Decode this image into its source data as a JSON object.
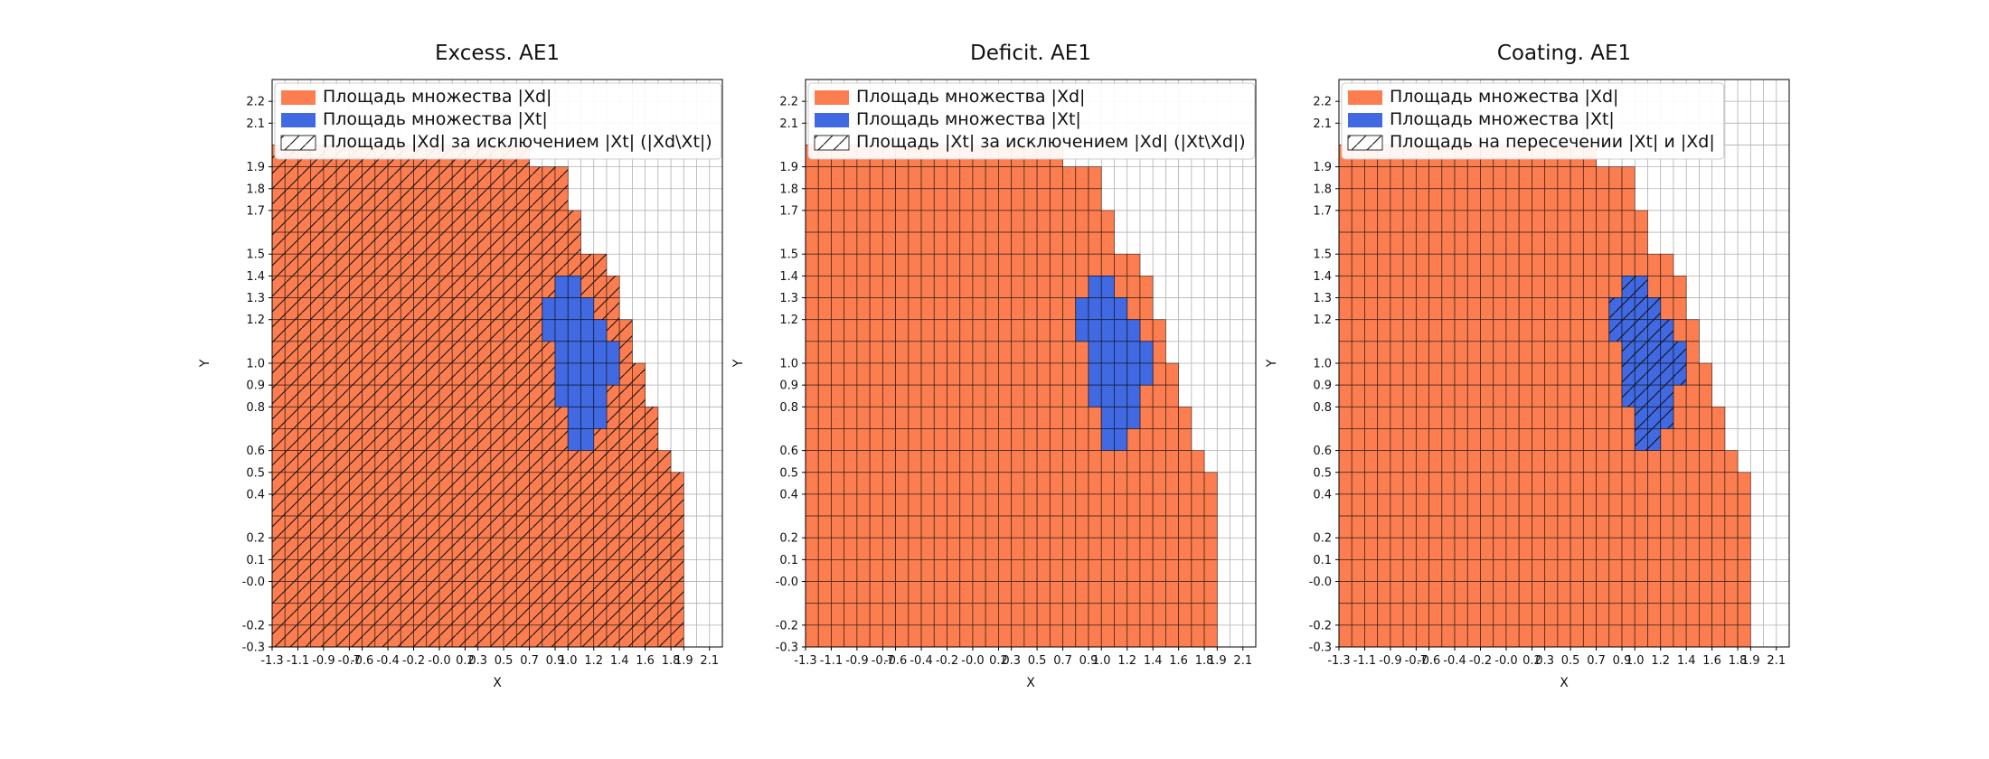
{
  "colors": {
    "xd": "#fc7e50",
    "xt": "#4169e1",
    "grid": "#b0b0b0",
    "cell_edge": "rgba(0,0,0,0.6)",
    "spine": "#000000",
    "legend_border": "#cccccc",
    "hatch": "#111111"
  },
  "panels": [
    {
      "title": "Excess. AE1",
      "xlabel": "X",
      "ylabel": "Y",
      "hatch": "xd",
      "legend": [
        "Площадь множества |Xd|",
        "Площадь множества  |Xt|",
        "Площадь |Xd| за исключением |Xt| (|Xd\\Xt|)"
      ]
    },
    {
      "title": "Deficit. AE1",
      "xlabel": "X",
      "ylabel": "Y",
      "hatch": "none",
      "legend": [
        "Площадь множества |Xd|",
        "Площадь множества  |Xt|",
        "Площадь |Xt| за исключением |Xd| (|Xt\\Xd|)"
      ]
    },
    {
      "title": "Coating. AE1",
      "xlabel": "X",
      "ylabel": "Y",
      "hatch": "xt",
      "legend": [
        "Площадь множества |Xd|",
        "Площадь множества  |Xt|",
        "Площадь на пересечении |Xt| и |Xd|"
      ]
    }
  ],
  "chart_data": {
    "type": "heatmap",
    "description": "Three grid-cell area plots comparing set |Xd| (orange cells) with set |Xt| (blue cells); hatching marks |Xd\\Xt| (Excess), |Xt\\Xd| (Deficit, empty) and the intersection (Coating). Cell size 0.1 x 0.1.",
    "cell_size": 0.1,
    "xlim": [
      -1.3,
      2.2
    ],
    "ylim": [
      -0.3,
      2.3
    ],
    "x_tick_labels": [
      "-1.3",
      "-1.1",
      "-0.9",
      "-0.7",
      "-0.6",
      "-0.4",
      "-0.2",
      "-0.0",
      "0.2",
      "0.3",
      "0.5",
      "0.7",
      "0.9",
      "1.0",
      "1.2",
      "1.4",
      "1.6",
      "1.8",
      "1.9",
      "2.1"
    ],
    "y_tick_labels": [
      "2.2",
      "2.1",
      "1.9",
      "1.8",
      "1.7",
      "1.5",
      "1.4",
      "1.3",
      "1.2",
      "1.0",
      "0.9",
      "0.8",
      "0.6",
      "0.5",
      "0.4",
      "0.2",
      "0.1",
      "-0.0",
      "-0.2",
      "-0.3"
    ],
    "xd_rows": [
      [
        1.9,
        -1.3,
        0.7
      ],
      [
        1.8,
        -1.3,
        1.0
      ],
      [
        1.7,
        -1.3,
        1.0
      ],
      [
        1.6,
        -1.3,
        1.1
      ],
      [
        1.5,
        -1.3,
        1.1
      ],
      [
        1.4,
        -1.3,
        1.3
      ],
      [
        1.3,
        -1.3,
        1.4
      ],
      [
        1.2,
        -1.3,
        1.4
      ],
      [
        1.1,
        -1.3,
        1.5
      ],
      [
        1.0,
        -1.3,
        1.5
      ],
      [
        0.9,
        -1.3,
        1.6
      ],
      [
        0.8,
        -1.3,
        1.6
      ],
      [
        0.7,
        -1.3,
        1.7
      ],
      [
        0.6,
        -1.3,
        1.7
      ],
      [
        0.5,
        -1.3,
        1.8
      ],
      [
        0.4,
        -1.3,
        1.9
      ],
      [
        0.3,
        -1.3,
        1.9
      ],
      [
        0.2,
        -1.3,
        1.9
      ],
      [
        0.1,
        -1.3,
        1.9
      ],
      [
        0.0,
        -1.3,
        1.9
      ],
      [
        -0.1,
        -1.3,
        1.9
      ],
      [
        -0.2,
        -1.3,
        1.9
      ],
      [
        -0.3,
        -1.3,
        1.9
      ]
    ],
    "xt_rows": [
      [
        1.3,
        0.9,
        1.1
      ],
      [
        1.2,
        0.8,
        1.2
      ],
      [
        1.1,
        0.8,
        1.3
      ],
      [
        1.0,
        0.9,
        1.4
      ],
      [
        0.9,
        0.9,
        1.4
      ],
      [
        0.8,
        0.9,
        1.3
      ],
      [
        0.7,
        1.0,
        1.3
      ],
      [
        0.6,
        1.0,
        1.2
      ]
    ]
  }
}
